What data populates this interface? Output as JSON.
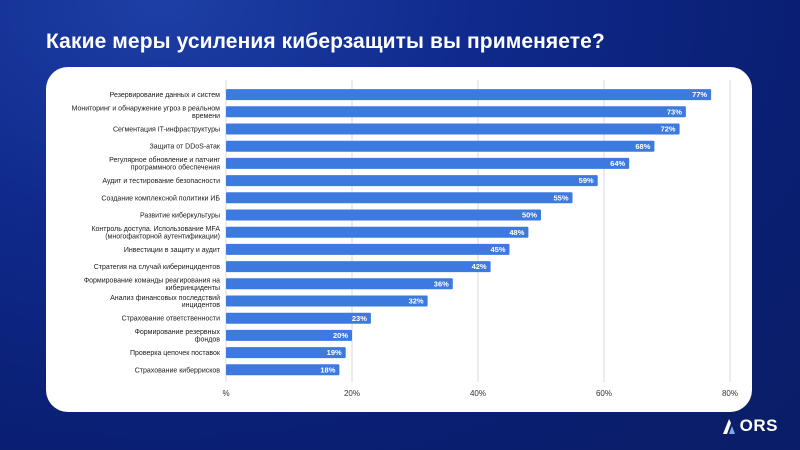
{
  "header": {
    "title": "Какие меры усиления киберзащиты вы применяете?"
  },
  "brand": {
    "logo_text": "ORS",
    "logo_icon": "ors-logo-mark"
  },
  "colors": {
    "background": "#0f2a8c",
    "bar": "#3d7ae0",
    "label_bg": "#3d7ae0",
    "text": "#1a1a1a"
  },
  "chart_data": {
    "type": "bar",
    "orientation": "horizontal",
    "title": "",
    "xlabel": "",
    "ylabel": "",
    "xlim": [
      0,
      80
    ],
    "x_ticks": [
      "%",
      "20%",
      "40%",
      "60%",
      "80%"
    ],
    "tick_values": [
      0,
      20,
      40,
      60,
      80
    ],
    "grid": true,
    "categories": [
      "Резервирование данных и систем",
      "Мониторинг и обнаружение угроз в реальном времени",
      "Сегментация IT-инфраструктуры",
      "Защита от DDoS-атак",
      "Регулярное обновление и патчинг программного обеспечения",
      "Аудит и тестирование безопасности",
      "Создание комплексной политики ИБ",
      "Развитие киберкультуры",
      "Контроль доступа. Использование MFA (многофакторной аутентификации)",
      "Инвестиции в защиту и аудит",
      "Стратегия на случай киберинцидентов",
      "Формирование команды реагирования на киберинциденты",
      "Анализ финансовых последствий инцидентов",
      "Страхование ответственности",
      "Формирование резервных фондов",
      "Проверка цепочек поставок",
      "Страхование киберрисков"
    ],
    "category_lines": [
      [
        "Резервирование данных и систем"
      ],
      [
        "Мониторинг и обнаружение угроз в реальном",
        "времени"
      ],
      [
        "Сегментация IT-инфраструктуры"
      ],
      [
        "Защита от DDoS-атак"
      ],
      [
        "Регулярное обновление и патчинг",
        "программного обеспечения"
      ],
      [
        "Аудит и тестирование безопасности"
      ],
      [
        "Создание комплексной политики ИБ"
      ],
      [
        "Развитие киберкультуры"
      ],
      [
        "Контроль доступа. Использование MFA",
        "(многофакторной аутентификации)"
      ],
      [
        "Инвестиции в защиту и аудит"
      ],
      [
        "Стратегия на случай киберинцидентов"
      ],
      [
        "Формирование команды реагирования на",
        "киберинциденты"
      ],
      [
        "Анализ финансовых последствий",
        "инцидентов"
      ],
      [
        "Страхование ответственности"
      ],
      [
        "Формирование резервных",
        "фондов"
      ],
      [
        "Проверка цепочек поставок"
      ],
      [
        "Страхование киберрисков"
      ]
    ],
    "values": [
      77,
      73,
      72,
      68,
      64,
      59,
      55,
      50,
      48,
      45,
      42,
      36,
      32,
      23,
      20,
      19,
      18
    ],
    "data_labels": [
      "77%",
      "73%",
      "72%",
      "68%",
      "64%",
      "59%",
      "55%",
      "50%",
      "48%",
      "45%",
      "42%",
      "36%",
      "32%",
      "23%",
      "20%",
      "19%",
      "18%"
    ]
  }
}
